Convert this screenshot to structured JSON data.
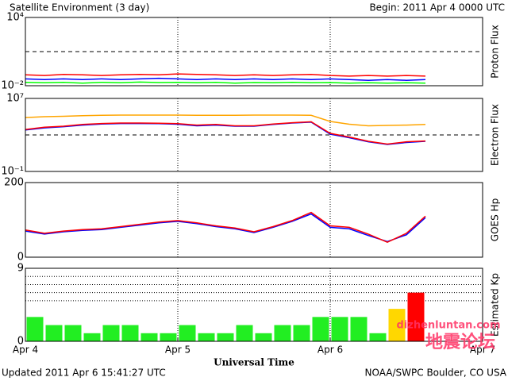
{
  "header": {
    "title": "Satellite Environment (3 day)",
    "begin": "Begin:  2011 Apr 4 0000 UTC"
  },
  "footer": {
    "updated": "Updated 2011 Apr  6 15:41:27 UTC",
    "credit": "NOAA/SWPC Boulder, CO USA"
  },
  "watermark": {
    "text": "地震论坛",
    "site": "dizhenluntan.com"
  },
  "chart_data": [
    {
      "type": "line",
      "y_label": "Proton Flux",
      "log": true,
      "ylim": [
        0.01,
        10000
      ],
      "yticks": [
        {
          "value": 10000,
          "label": "10⁴"
        },
        {
          "value": 0.01,
          "label": "10⁻²"
        }
      ],
      "ref_lines": [
        10
      ],
      "xlim": [
        4,
        7
      ],
      "x": [
        4,
        4.125,
        4.25,
        4.375,
        4.5,
        4.625,
        4.75,
        4.875,
        5,
        5.125,
        5.25,
        5.375,
        5.5,
        5.625,
        5.75,
        5.875,
        6,
        6.125,
        6.25,
        6.375,
        6.5,
        6.625
      ],
      "series": [
        {
          "color": "#00ff00",
          "values": [
            0.02,
            0.018,
            0.02,
            0.017,
            0.02,
            0.018,
            0.021,
            0.019,
            0.02,
            0.018,
            0.02,
            0.017,
            0.019,
            0.018,
            0.02,
            0.018,
            0.019,
            0.017,
            0.018,
            0.017,
            0.018,
            0.017
          ]
        },
        {
          "color": "#0000ff",
          "values": [
            0.04,
            0.035,
            0.04,
            0.035,
            0.04,
            0.035,
            0.04,
            0.045,
            0.04,
            0.035,
            0.04,
            0.035,
            0.04,
            0.035,
            0.04,
            0.035,
            0.04,
            0.035,
            0.03,
            0.035,
            0.03,
            0.035
          ]
        },
        {
          "color": "#ff0000",
          "values": [
            0.09,
            0.08,
            0.1,
            0.09,
            0.08,
            0.09,
            0.1,
            0.09,
            0.11,
            0.1,
            0.09,
            0.08,
            0.09,
            0.08,
            0.09,
            0.1,
            0.08,
            0.07,
            0.08,
            0.07,
            0.08,
            0.07
          ]
        }
      ]
    },
    {
      "type": "line",
      "y_label": "Electron Flux",
      "log": true,
      "ylim": [
        0.1,
        10000000
      ],
      "yticks": [
        {
          "value": 10000000,
          "label": "10⁷"
        },
        {
          "value": 0.1,
          "label": "10⁻¹"
        }
      ],
      "ref_lines": [
        1000
      ],
      "xlim": [
        4,
        7
      ],
      "x": [
        4,
        4.125,
        4.25,
        4.375,
        4.5,
        4.625,
        4.75,
        4.875,
        5,
        5.125,
        5.25,
        5.375,
        5.5,
        5.625,
        5.75,
        5.875,
        6,
        6.125,
        6.25,
        6.375,
        6.5,
        6.625
      ],
      "series": [
        {
          "color": "#ffa500",
          "values": [
            80000,
            100000,
            110000,
            130000,
            140000,
            150000,
            150000,
            150000,
            150000,
            140000,
            140000,
            140000,
            150000,
            150000,
            150000,
            140000,
            30000,
            15000,
            10000,
            11000,
            12000,
            14000
          ]
        },
        {
          "color": "#0000ff",
          "values": [
            3500,
            6000,
            8000,
            12000,
            16000,
            18000,
            18000,
            17000,
            15000,
            10000,
            12000,
            9000,
            9000,
            14000,
            20000,
            25000,
            1200,
            500,
            180,
            90,
            150,
            200
          ]
        },
        {
          "color": "#ff0000",
          "values": [
            4000,
            7000,
            9000,
            14000,
            18000,
            20000,
            20000,
            19000,
            17000,
            12000,
            14000,
            10000,
            10000,
            16000,
            22000,
            28000,
            1500,
            600,
            200,
            100,
            180,
            220
          ]
        }
      ]
    },
    {
      "type": "line",
      "y_label": "GOES Hp",
      "log": false,
      "ylim": [
        0,
        200
      ],
      "yticks": [
        200,
        0
      ],
      "xlim": [
        4,
        7
      ],
      "x": [
        4,
        4.125,
        4.25,
        4.375,
        4.5,
        4.625,
        4.75,
        4.875,
        5,
        5.125,
        5.25,
        5.375,
        5.5,
        5.625,
        5.75,
        5.875,
        6,
        6.125,
        6.25,
        6.375,
        6.5,
        6.625
      ],
      "series": [
        {
          "color": "#0000ff",
          "values": [
            70,
            62,
            68,
            72,
            74,
            80,
            86,
            92,
            96,
            90,
            82,
            76,
            66,
            80,
            96,
            116,
            80,
            76,
            58,
            42,
            60,
            106
          ]
        },
        {
          "color": "#ff0000",
          "values": [
            73,
            64,
            70,
            74,
            76,
            82,
            88,
            94,
            98,
            92,
            84,
            78,
            68,
            82,
            98,
            120,
            84,
            80,
            62,
            40,
            64,
            110
          ]
        }
      ]
    },
    {
      "type": "bar",
      "y_label": "Estimated Kp",
      "x_label": "Universal Time",
      "ylim": [
        0,
        9
      ],
      "yticks": [
        9,
        0
      ],
      "ref_lines": [
        5,
        6,
        7,
        8
      ],
      "xlim": [
        4,
        7
      ],
      "xticks": [
        {
          "value": 4,
          "label": "Apr 4"
        },
        {
          "value": 5,
          "label": "Apr 5"
        },
        {
          "value": 6,
          "label": "Apr 6"
        },
        {
          "value": 7,
          "label": "Apr 7"
        }
      ],
      "x": [
        4,
        4.125,
        4.25,
        4.375,
        4.5,
        4.625,
        4.75,
        4.875,
        5,
        5.125,
        5.25,
        5.375,
        5.5,
        5.625,
        5.75,
        5.875,
        6,
        6.125,
        6.25,
        6.375,
        6.5
      ],
      "values": [
        3,
        2,
        2,
        1,
        2,
        2,
        1,
        1,
        2,
        1,
        1,
        2,
        1,
        2,
        2,
        3,
        3,
        3,
        1,
        4,
        6
      ],
      "colors": [
        "#22ee22",
        "#22ee22",
        "#22ee22",
        "#22ee22",
        "#22ee22",
        "#22ee22",
        "#22ee22",
        "#22ee22",
        "#22ee22",
        "#22ee22",
        "#22ee22",
        "#22ee22",
        "#22ee22",
        "#22ee22",
        "#22ee22",
        "#22ee22",
        "#22ee22",
        "#22ee22",
        "#22ee22",
        "#ffd700",
        "#ff0000"
      ]
    }
  ]
}
